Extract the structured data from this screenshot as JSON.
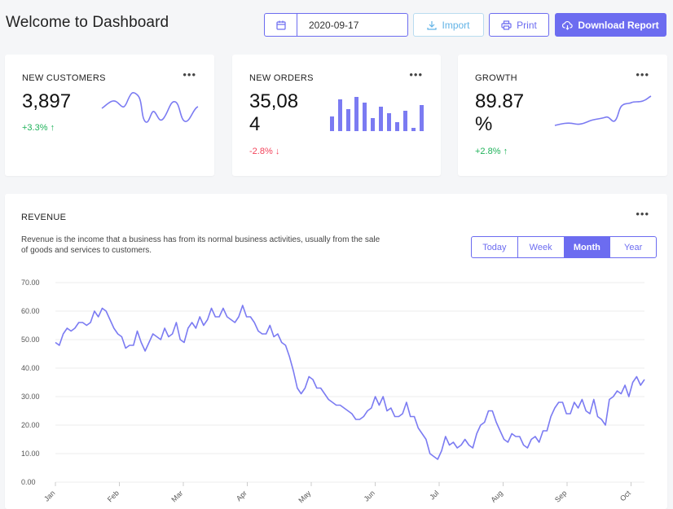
{
  "header": {
    "title": "Welcome to Dashboard",
    "date_value": "2020-09-17",
    "import_label": "Import",
    "print_label": "Print",
    "download_label": "Download Report"
  },
  "stats": [
    {
      "label": "NEW CUSTOMERS",
      "value": "3,897",
      "change": "+3.3%",
      "direction": "up"
    },
    {
      "label": "NEW ORDERS",
      "value": "35,084",
      "change": "-2.8%",
      "direction": "down"
    },
    {
      "label": "GROWTH",
      "value": "89.87 %",
      "change": "+2.8%",
      "direction": "up"
    }
  ],
  "revenue": {
    "title": "REVENUE",
    "description": "Revenue is the income that a business has from its normal business activities, usually from the sale of goods and services to customers.",
    "tabs": [
      "Today",
      "Week",
      "Month",
      "Year"
    ],
    "active_tab": "Month"
  },
  "colors": {
    "accent": "#6c6cf0",
    "up": "#1fb25a",
    "down": "#f2435a",
    "import": "#62b3e6"
  },
  "chart_data": {
    "type": "line",
    "ylim": [
      0,
      70
    ],
    "yticks": [
      "0.00",
      "10.00",
      "20.00",
      "30.00",
      "40.00",
      "50.00",
      "60.00",
      "70.00"
    ],
    "xticks": [
      "Jan",
      "Feb",
      "Mar",
      "Apr",
      "May",
      "Jun",
      "Jul",
      "Aug",
      "Sep",
      "Oct"
    ],
    "values": [
      49,
      48,
      52,
      54,
      53,
      54,
      56,
      56,
      55,
      56,
      60,
      58,
      61,
      60,
      57,
      54,
      52,
      51,
      47,
      48,
      48,
      53,
      49,
      46,
      49,
      52,
      51,
      50,
      54,
      51,
      52,
      56,
      50,
      49,
      54,
      56,
      54,
      58,
      55,
      57,
      61,
      58,
      58,
      61,
      58,
      57,
      56,
      58,
      62,
      58,
      58,
      56,
      53,
      52,
      52,
      55,
      51,
      52,
      49,
      48,
      44,
      39,
      33,
      31,
      33,
      37,
      36,
      33,
      33,
      31,
      29,
      28,
      27,
      27,
      26,
      25,
      24,
      22,
      22,
      23,
      25,
      26,
      30,
      27,
      30,
      25,
      26,
      23,
      23,
      24,
      28,
      23,
      23,
      19,
      17,
      15,
      10,
      9,
      8,
      11,
      16,
      13,
      14,
      12,
      13,
      15,
      13,
      12,
      17,
      20,
      21,
      25,
      25,
      21,
      18,
      15,
      14,
      17,
      16,
      16,
      13,
      12,
      15,
      16,
      14,
      18,
      18,
      23,
      26,
      28,
      28,
      24,
      24,
      28,
      26,
      29,
      25,
      24,
      29,
      23,
      22,
      20,
      29,
      30,
      32,
      31,
      34,
      30,
      35,
      37,
      34,
      36
    ]
  }
}
